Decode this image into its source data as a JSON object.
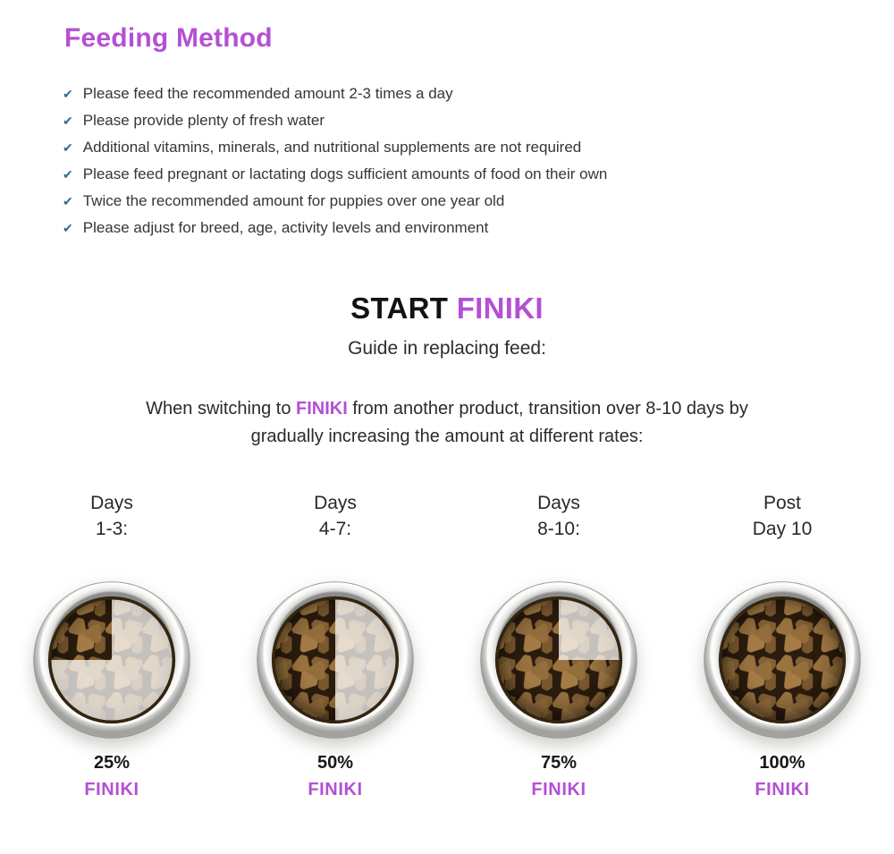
{
  "colors": {
    "brand_purple": "#b450d4",
    "check_teal": "#2a6d90",
    "heading_black": "#121216",
    "body_text": "#35353b",
    "kibble_brown": "#9c7440",
    "bowl_steel": "#f2f2f0"
  },
  "icons": {
    "check": "✔"
  },
  "feeding_method": {
    "heading": "Feeding Method",
    "bullets": [
      "Please feed the recommended amount 2-3 times a day",
      "Please provide plenty of fresh water",
      "Additional vitamins, minerals, and nutritional supplements are not required",
      "Please feed pregnant or lactating dogs sufficient amounts of food on their own",
      "Twice the recommended amount for puppies over one year old",
      "Please adjust for breed, age, activity levels and environment"
    ]
  },
  "start_section": {
    "heading_start": "START",
    "heading_brand": "FINIKI",
    "subtitle": "Guide in replacing feed:",
    "desc_pre": "When switching to ",
    "desc_brand": "FINIKI",
    "desc_post": " from another product, transition over 8-10 days by gradually increasing the amount at different rates:"
  },
  "transition_steps": [
    {
      "period_line1": "Days",
      "period_line2": "1-3:",
      "finiki_percent": 25,
      "percent_label": "25%",
      "brand_label": "FINIKI"
    },
    {
      "period_line1": "Days",
      "period_line2": "4-7:",
      "finiki_percent": 50,
      "percent_label": "50%",
      "brand_label": "FINIKI"
    },
    {
      "period_line1": "Days",
      "period_line2": "8-10:",
      "finiki_percent": 75,
      "percent_label": "75%",
      "brand_label": "FINIKI"
    },
    {
      "period_line1": "Post",
      "period_line2": "Day 10",
      "finiki_percent": 100,
      "percent_label": "100%",
      "brand_label": "FINIKI"
    }
  ]
}
